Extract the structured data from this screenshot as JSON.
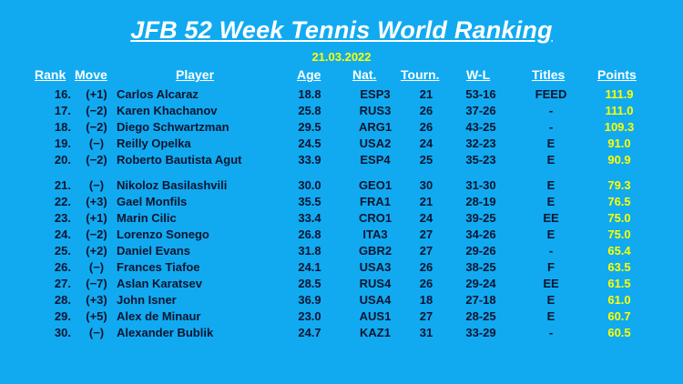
{
  "title": "JFB 52 Week Tennis World Ranking",
  "date": "21.03.2022",
  "columns": {
    "rank": "Rank",
    "move": "Move",
    "player": "Player",
    "age": "Age",
    "nat": "Nat.",
    "tourn": "Tourn.",
    "wl": "W-L",
    "titles": "Titles",
    "points": "Points"
  },
  "rows": [
    {
      "rank": "16.",
      "move": "(+1)",
      "player": "Carlos Alcaraz",
      "age": "18.8",
      "nat": "ESP3",
      "tourn": "21",
      "wl": "53-16",
      "titles": "FEED",
      "points": "111.9"
    },
    {
      "rank": "17.",
      "move": "(−2)",
      "player": "Karen Khachanov",
      "age": "25.8",
      "nat": "RUS3",
      "tourn": "26",
      "wl": "37-26",
      "titles": "-",
      "points": "111.0"
    },
    {
      "rank": "18.",
      "move": "(−2)",
      "player": "Diego Schwartzman",
      "age": "29.5",
      "nat": "ARG1",
      "tourn": "26",
      "wl": "43-25",
      "titles": "-",
      "points": "109.3"
    },
    {
      "rank": "19.",
      "move": "(−)",
      "player": "Reilly Opelka",
      "age": "24.5",
      "nat": "USA2",
      "tourn": "24",
      "wl": "32-23",
      "titles": "E",
      "points": "91.0"
    },
    {
      "rank": "20.",
      "move": "(−2)",
      "player": "Roberto Bautista Agut",
      "age": "33.9",
      "nat": "ESP4",
      "tourn": "25",
      "wl": "35-23",
      "titles": "E",
      "points": "90.9"
    },
    {
      "rank": "21.",
      "move": "(−)",
      "player": "Nikoloz Basilashvili",
      "age": "30.0",
      "nat": "GEO1",
      "tourn": "30",
      "wl": "31-30",
      "titles": "E",
      "points": "79.3"
    },
    {
      "rank": "22.",
      "move": "(+3)",
      "player": "Gael Monfils",
      "age": "35.5",
      "nat": "FRA1",
      "tourn": "21",
      "wl": "28-19",
      "titles": "E",
      "points": "76.5"
    },
    {
      "rank": "23.",
      "move": "(+1)",
      "player": "Marin Cilic",
      "age": "33.4",
      "nat": "CRO1",
      "tourn": "24",
      "wl": "39-25",
      "titles": "EE",
      "points": "75.0"
    },
    {
      "rank": "24.",
      "move": "(−2)",
      "player": "Lorenzo Sonego",
      "age": "26.8",
      "nat": "ITA3",
      "tourn": "27",
      "wl": "34-26",
      "titles": "E",
      "points": "75.0"
    },
    {
      "rank": "25.",
      "move": "(+2)",
      "player": "Daniel Evans",
      "age": "31.8",
      "nat": "GBR2",
      "tourn": "27",
      "wl": "29-26",
      "titles": "-",
      "points": "65.4"
    },
    {
      "rank": "26.",
      "move": "(−)",
      "player": "Frances Tiafoe",
      "age": "24.1",
      "nat": "USA3",
      "tourn": "26",
      "wl": "38-25",
      "titles": "F",
      "points": "63.5"
    },
    {
      "rank": "27.",
      "move": "(−7)",
      "player": "Aslan Karatsev",
      "age": "28.5",
      "nat": "RUS4",
      "tourn": "26",
      "wl": "29-24",
      "titles": "EE",
      "points": "61.5"
    },
    {
      "rank": "28.",
      "move": "(+3)",
      "player": "John Isner",
      "age": "36.9",
      "nat": "USA4",
      "tourn": "18",
      "wl": "27-18",
      "titles": "E",
      "points": "61.0"
    },
    {
      "rank": "29.",
      "move": "(+5)",
      "player": "Alex de Minaur",
      "age": "23.0",
      "nat": "AUS1",
      "tourn": "27",
      "wl": "28-25",
      "titles": "E",
      "points": "60.7"
    },
    {
      "rank": "30.",
      "move": "(−)",
      "player": "Alexander Bublik",
      "age": "24.7",
      "nat": "KAZ1",
      "tourn": "31",
      "wl": "33-29",
      "titles": "-",
      "points": "60.5"
    }
  ],
  "colors": {
    "background": "#11aaf0",
    "title": "#ffffff",
    "points": "#ffff00",
    "text": "#0b1530"
  }
}
